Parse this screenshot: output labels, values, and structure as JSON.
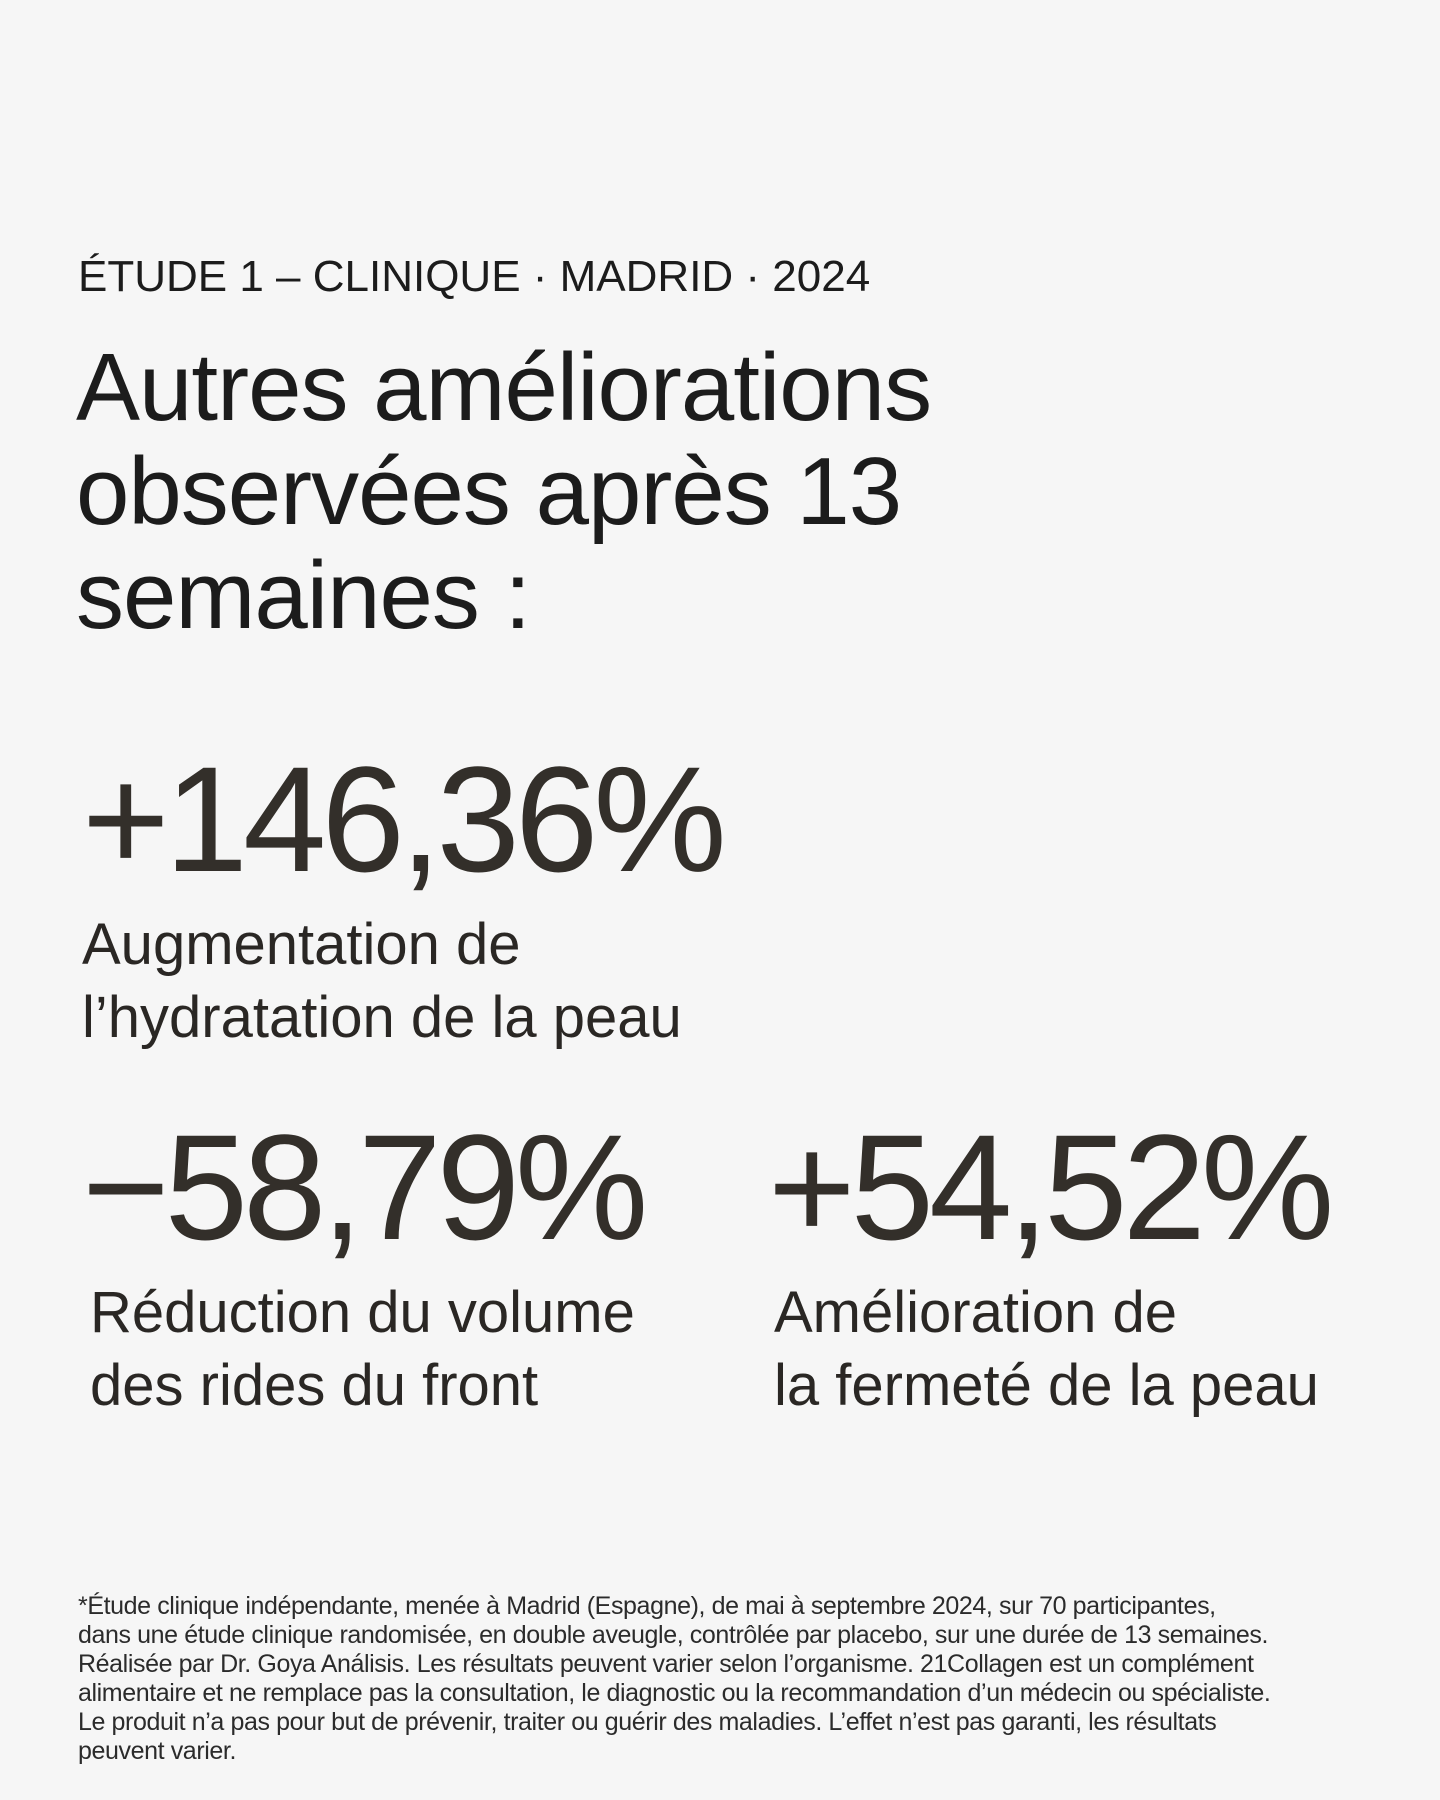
{
  "header": {
    "eyebrow": "ÉTUDE 1 – CLINIQUE · MADRID · 2024",
    "title": "Autres améliorations observées après 13 semaines :"
  },
  "stats": [
    {
      "value": "+146,36%",
      "label_lines": [
        "Augmentation de",
        "l’hydratation de la peau"
      ]
    },
    {
      "value": "−58,79%",
      "label_lines": [
        "Réduction du volume",
        "des rides du front"
      ]
    },
    {
      "value": "+54,52%",
      "label_lines": [
        "Amélioration de",
        "la fermeté de la peau"
      ]
    }
  ],
  "disclaimer_lines": [
    "*Étude clinique indépendante, menée à Madrid (Espagne), de mai à septembre 2024, sur 70 participantes,",
    "dans une étude clinique randomisée, en double aveugle, contrôlée par placebo, sur une durée de 13 semaines.",
    "Réalisée par Dr. Goya Análisis. Les résultats peuvent varier selon l’organisme. 21Collagen est un complément",
    "alimentaire et ne remplace pas la consultation, le diagnostic ou la recommandation d’un médecin ou spécialiste.",
    "Le produit n’a pas pour but de prévenir, traiter ou guérir des maladies. L’effet n’est pas garanti, les résultats",
    "peuvent varier."
  ]
}
